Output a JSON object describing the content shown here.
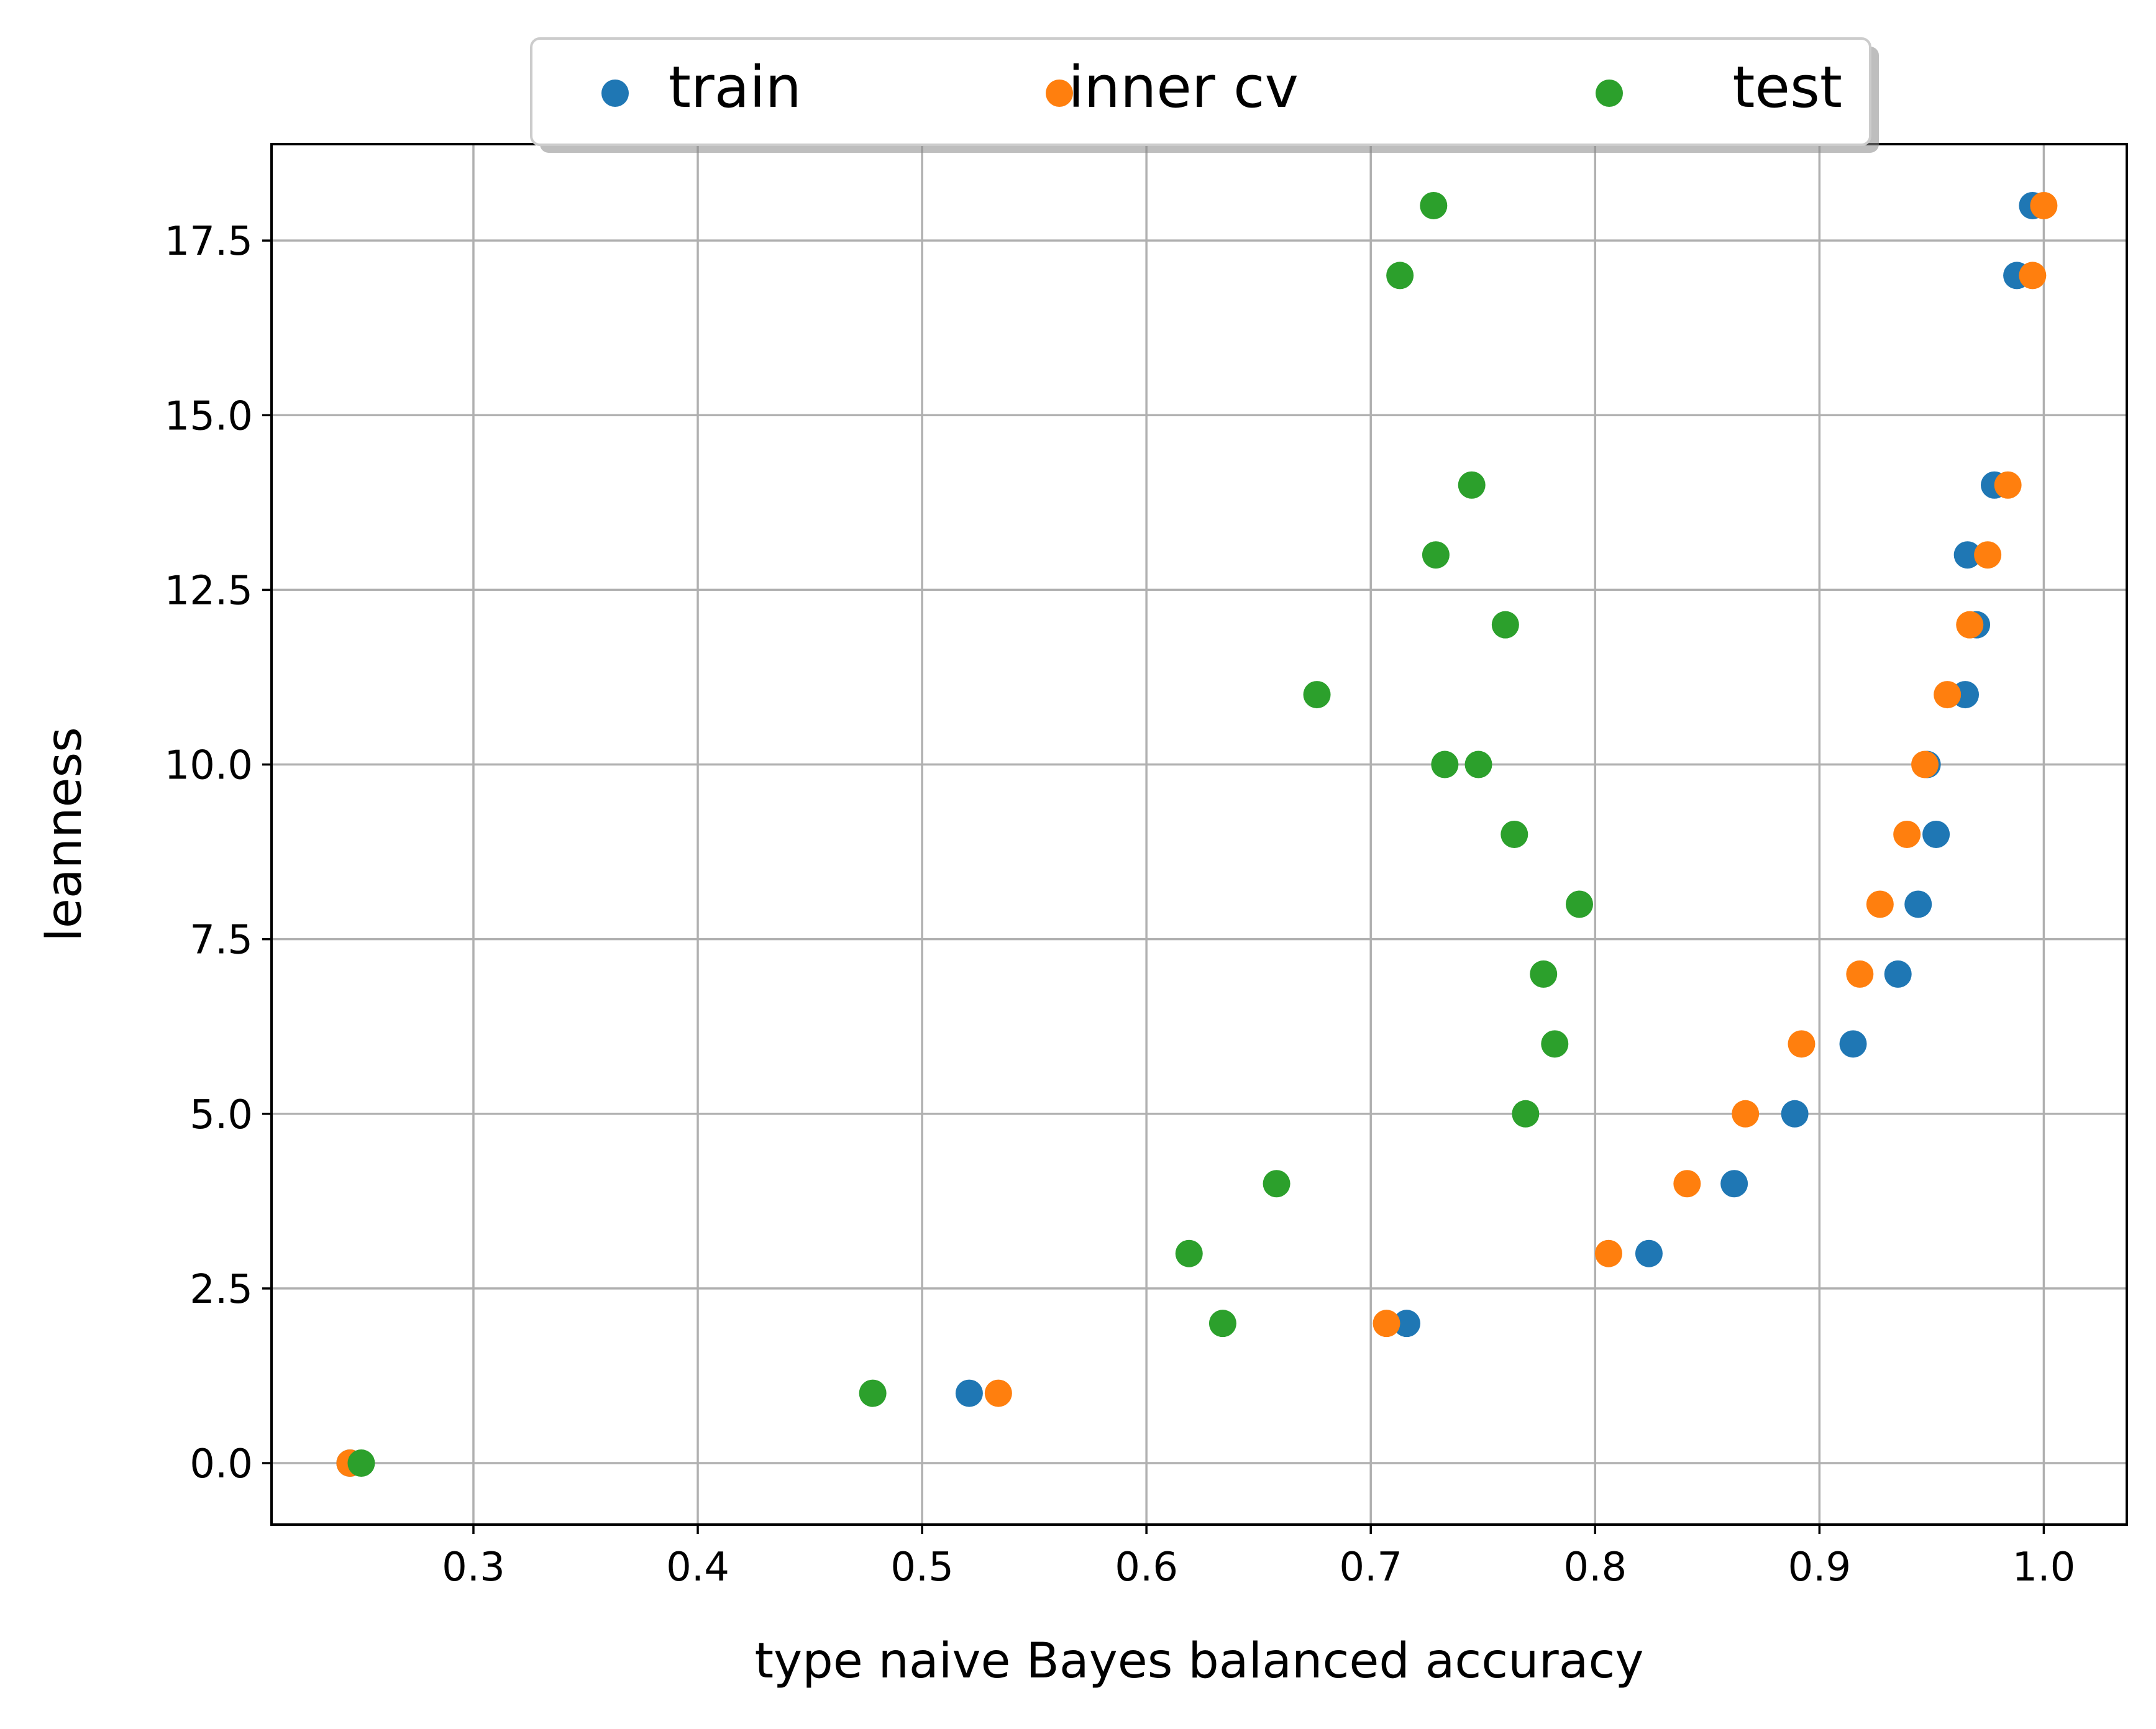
{
  "chart_data": {
    "type": "scatter",
    "title": "",
    "xlabel": "type naive Bayes balanced accuracy",
    "ylabel": "leanness",
    "xlim": [
      0.21,
      1.037
    ],
    "ylim": [
      -0.88,
      18.88
    ],
    "xticks": [
      0.3,
      0.4,
      0.5,
      0.6,
      0.7,
      0.8,
      0.9,
      1.0
    ],
    "xtick_labels": [
      "0.3",
      "0.4",
      "0.5",
      "0.6",
      "0.7",
      "0.8",
      "0.9",
      "1.0"
    ],
    "yticks": [
      0.0,
      2.5,
      5.0,
      7.5,
      10.0,
      12.5,
      15.0,
      17.5
    ],
    "ytick_labels": [
      "0.0",
      "2.5",
      "5.0",
      "7.5",
      "10.0",
      "12.5",
      "15.0",
      "17.5"
    ],
    "grid": true,
    "legend_position": "top-center",
    "series": [
      {
        "name": "train",
        "color": "#1f77b4",
        "points": [
          [
            0.245,
            0
          ],
          [
            0.521,
            1
          ],
          [
            0.716,
            2
          ],
          [
            0.824,
            3
          ],
          [
            0.862,
            4
          ],
          [
            0.889,
            5
          ],
          [
            0.915,
            6
          ],
          [
            0.935,
            7
          ],
          [
            0.944,
            8
          ],
          [
            0.952,
            9
          ],
          [
            0.948,
            10
          ],
          [
            0.965,
            11
          ],
          [
            0.97,
            12
          ],
          [
            0.966,
            13
          ],
          [
            0.978,
            14
          ],
          [
            0.988,
            17
          ],
          [
            0.995,
            18
          ]
        ]
      },
      {
        "name": "inner cv",
        "color": "#ff7f0e",
        "points": [
          [
            0.245,
            0
          ],
          [
            0.534,
            1
          ],
          [
            0.707,
            2
          ],
          [
            0.806,
            3
          ],
          [
            0.841,
            4
          ],
          [
            0.867,
            5
          ],
          [
            0.892,
            6
          ],
          [
            0.918,
            7
          ],
          [
            0.927,
            8
          ],
          [
            0.939,
            9
          ],
          [
            0.947,
            10
          ],
          [
            0.957,
            11
          ],
          [
            0.967,
            12
          ],
          [
            0.975,
            13
          ],
          [
            0.984,
            14
          ],
          [
            0.995,
            17
          ],
          [
            1.0,
            18
          ]
        ]
      },
      {
        "name": "test",
        "color": "#2ca02c",
        "points": [
          [
            0.25,
            0
          ],
          [
            0.478,
            1
          ],
          [
            0.634,
            2
          ],
          [
            0.619,
            3
          ],
          [
            0.658,
            4
          ],
          [
            0.769,
            5
          ],
          [
            0.782,
            6
          ],
          [
            0.777,
            7
          ],
          [
            0.793,
            8
          ],
          [
            0.764,
            9
          ],
          [
            0.733,
            10
          ],
          [
            0.748,
            10
          ],
          [
            0.676,
            11
          ],
          [
            0.76,
            12
          ],
          [
            0.729,
            13
          ],
          [
            0.745,
            14
          ],
          [
            0.713,
            17
          ],
          [
            0.728,
            18
          ]
        ]
      }
    ]
  }
}
